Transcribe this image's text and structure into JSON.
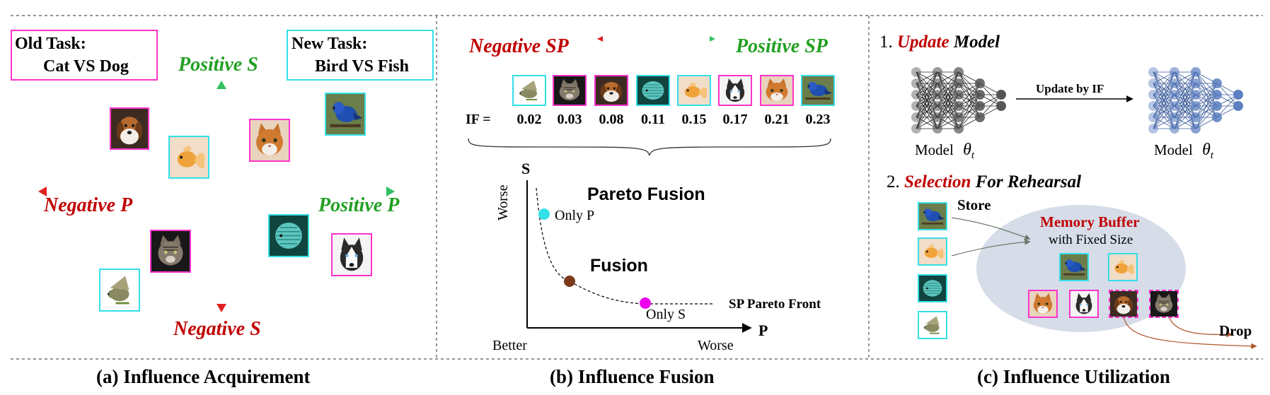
{
  "panel_a": {
    "old_task_label": "Old Task:",
    "old_task_value": "Cat VS Dog",
    "new_task_label": "New Task:",
    "new_task_value": "Bird VS Fish",
    "positive_s": "Positive S",
    "negative_s": "Negative S",
    "positive_p": "Positive P",
    "negative_p": "Negative P",
    "caption": "(a) Influence Acquirement"
  },
  "panel_b": {
    "negative_sp": "Negative SP",
    "positive_sp": "Positive SP",
    "if_label": "IF =",
    "if_values": [
      "0.02",
      "0.03",
      "0.08",
      "0.11",
      "0.15",
      "0.17",
      "0.21",
      "0.23"
    ],
    "axis_s": "S",
    "axis_p": "P",
    "worse_y": "Worse",
    "better": "Better",
    "worse_x": "Worse",
    "pareto_fusion": "Pareto Fusion",
    "only_p": "Only P",
    "fusion": "Fusion",
    "only_s": "Only S",
    "pareto_front": "SP Pareto Front",
    "caption": "(b) Influence Fusion"
  },
  "panel_c": {
    "step1_num": "1.",
    "step1_word1": "Update",
    "step1_word2": "Model",
    "model_label_left": "Model",
    "model_label_right": "Model",
    "theta": "θ",
    "theta_sub": "t",
    "update_by_if": "Update by IF",
    "step2_num": "2.",
    "step2_word1": "Selection",
    "step2_word2": "For Rehearsal",
    "store": "Store",
    "memory_buffer": "Memory Buffer",
    "fixed_size": "with Fixed Size",
    "drop": "Drop",
    "caption": "(c) Influence Utilization"
  },
  "colors": {
    "red": "#c00000",
    "green": "#22a022",
    "magenta_border": "#ff33cc",
    "cyan_border": "#33e0e8",
    "brown_point": "#7a3a1a",
    "cyan_point": "#33e0e8",
    "magenta_point": "#ee00ee",
    "network_gray": "#555555",
    "network_blue": "#5b7fc0",
    "buffer_fill": "#d6dce8"
  },
  "icons": [
    "dog-icon",
    "cat-icon",
    "bird-icon",
    "fish-icon"
  ]
}
